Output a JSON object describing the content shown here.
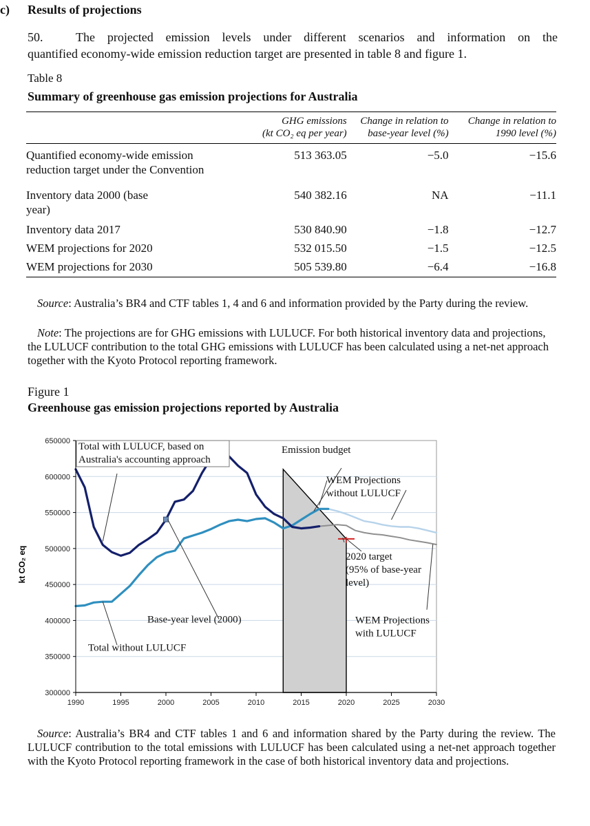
{
  "section": {
    "marker": "c)",
    "title": "Results of projections"
  },
  "paragraph": {
    "number": "50.",
    "line1": "The projected emission levels under different scenarios and information on the",
    "line2": "quantified economy-wide emission reduction target are presented in table 8 and figure 1."
  },
  "table": {
    "label": "Table 8",
    "title": "Summary of greenhouse gas emission projections for Australia",
    "headers": {
      "col2_line1": "GHG emissions",
      "col2_line2": "(kt CO₂ eq per year)",
      "col3_line1": "Change in relation to",
      "col3_line2": "base-year level (%)",
      "col4_line1": "Change in relation to",
      "col4_line2": "1990 level (%)"
    },
    "rows": [
      {
        "label": "Quantified economy-wide emission reduction target under the Convention",
        "emissions": "513 363.05",
        "change_base": "−5.0",
        "change_1990": "−15.6"
      },
      {
        "label": "Inventory data 2000 (base year)",
        "emissions": "540 382.16",
        "change_base": "NA",
        "change_1990": "−11.1"
      },
      {
        "label": "Inventory data 2017",
        "emissions": "530 840.90",
        "change_base": "−1.8",
        "change_1990": "−12.7"
      },
      {
        "label": "WEM projections for 2020",
        "emissions": "532 015.50",
        "change_base": "−1.5",
        "change_1990": "−12.5"
      },
      {
        "label": "WEM projections for 2030",
        "emissions": "505 539.80",
        "change_base": "−6.4",
        "change_1990": "−16.8"
      }
    ],
    "source_label": "Source",
    "source_text": ": Australia’s BR4 and CTF tables 1, 4 and 6 and information provided by the Party during the review.",
    "note_label": "Note",
    "note_text": ": The projections are for GHG emissions with LULUCF. For both historical inventory data and projections, the LULUCF contribution to the total GHG emissions with LULUCF has been calculated using a net-net approach together with the Kyoto Protocol reporting framework."
  },
  "figure": {
    "label": "Figure 1",
    "title": "Greenhouse gas emission projections reported by Australia",
    "source_label": "Source",
    "source_text": ": Australia’s BR4 and CTF tables 1 and 6 and information shared by the Party during the review. The LULUCF contribution to the total emissions with LULUCF has been calculated using a net-net approach together with the Kyoto Protocol reporting framework in the case of both historical inventory data and projections."
  },
  "chart_data": {
    "type": "line",
    "ylabel": "kt CO₂ eq",
    "xlim": [
      1990,
      2030
    ],
    "ylim": [
      300000,
      650000
    ],
    "x_ticks": [
      1990,
      1995,
      2000,
      2005,
      2010,
      2015,
      2020,
      2025,
      2030
    ],
    "y_ticks": [
      300000,
      350000,
      400000,
      450000,
      500000,
      550000,
      600000,
      650000
    ],
    "y_tick_labels": [
      "300000",
      "350000",
      "400000",
      "450000",
      "500000",
      "550000",
      "600000",
      "650000"
    ],
    "grid": "horizontal",
    "colors": {
      "with_lulucf": "#14206b",
      "without_lulucf": "#2f8fbf",
      "wem_without": "#b7d3ea",
      "wem_with": "#8f8f8f",
      "budget_fill": "#d0d0d0",
      "target_mark": "#d22222"
    },
    "series": [
      {
        "key": "with_lulucf",
        "x": [
          1990,
          1991,
          1992,
          1993,
          1994,
          1995,
          1996,
          1997,
          1998,
          1999,
          2000,
          2001,
          2002,
          2003,
          2004,
          2005,
          2006,
          2007,
          2008,
          2009,
          2010,
          2011,
          2012,
          2013,
          2014,
          2015,
          2016,
          2017
        ],
        "values": [
          610000,
          585000,
          530000,
          505000,
          495000,
          490000,
          494000,
          505000,
          513000,
          522000,
          540000,
          565000,
          568000,
          580000,
          605000,
          625000,
          615000,
          628000,
          615000,
          605000,
          575000,
          558000,
          548000,
          542000,
          530000,
          528000,
          529000,
          530800
        ]
      },
      {
        "key": "without_lulucf",
        "x": [
          1990,
          1991,
          1992,
          1993,
          1994,
          1995,
          1996,
          1997,
          1998,
          1999,
          2000,
          2001,
          2002,
          2003,
          2004,
          2005,
          2006,
          2007,
          2008,
          2009,
          2010,
          2011,
          2012,
          2013,
          2014,
          2015,
          2016,
          2017,
          2018
        ],
        "values": [
          420000,
          421000,
          425000,
          426000,
          426000,
          437000,
          448000,
          463000,
          477000,
          488000,
          494000,
          497000,
          514000,
          518000,
          522000,
          527000,
          533000,
          538000,
          540000,
          538000,
          541000,
          542000,
          536000,
          528000,
          532000,
          540000,
          548000,
          555000,
          555000
        ]
      },
      {
        "key": "wem_without",
        "x": [
          2017,
          2018,
          2019,
          2020,
          2021,
          2022,
          2023,
          2024,
          2025,
          2026,
          2027,
          2028,
          2029,
          2030
        ],
        "values": [
          555000,
          555000,
          552000,
          548000,
          543000,
          538000,
          536000,
          533000,
          531000,
          530000,
          530000,
          528000,
          525000,
          522000
        ]
      },
      {
        "key": "wem_with",
        "x": [
          2017,
          2018,
          2019,
          2020,
          2021,
          2022,
          2023,
          2024,
          2025,
          2026,
          2027,
          2028,
          2029,
          2030
        ],
        "values": [
          530800,
          532000,
          533000,
          532000,
          525000,
          522000,
          520000,
          519000,
          517000,
          515000,
          512000,
          510000,
          508000,
          505500
        ]
      }
    ],
    "emission_budget": {
      "x": [
        2013,
        2020
      ],
      "top": [
        610000,
        513363
      ],
      "bottom": 300000
    },
    "base_year_point": {
      "x": 2000,
      "y": 540382
    },
    "target_2020": 513363,
    "annotations": [
      {
        "key": "with_lulucf",
        "lines": [
          "Total with LULUCF, based on",
          "Australia's accounting approach"
        ]
      },
      {
        "key": "budget",
        "lines": [
          "Emission budget"
        ]
      },
      {
        "key": "wem_without",
        "lines": [
          "WEM Projections",
          "without LULUCF"
        ]
      },
      {
        "key": "target",
        "lines": [
          "2020 target",
          "(95% of base-year",
          "level)"
        ]
      },
      {
        "key": "wem_with",
        "lines": [
          "WEM Projections",
          "with LULUCF"
        ]
      },
      {
        "key": "base_year",
        "lines": [
          "Base-year level (2000)"
        ]
      },
      {
        "key": "without_lulucf",
        "lines": [
          "Total without LULUCF"
        ]
      }
    ]
  }
}
